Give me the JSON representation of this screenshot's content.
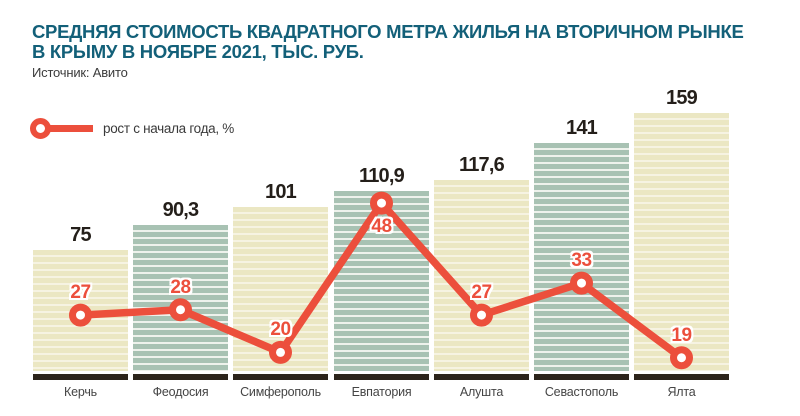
{
  "header": {
    "title_line1": "СРЕДНЯЯ СТОИМОСТЬ КВАДРАТНОГО МЕТРА ЖИЛЬЯ НА ВТОРИЧНОМ РЫНКЕ",
    "title_line2": "В КРЫМУ В НОЯБРЕ 2021, ТЫС. РУБ.",
    "source": "Источник: Авито"
  },
  "legend": {
    "label": "рост с начала года, %"
  },
  "colors": {
    "title": "#136079",
    "red": "#ec4f3c",
    "bar_cream": "#ebe7c3",
    "bar_cream_stripe": "#f6f3e2",
    "bar_green": "#a8c2b3",
    "bar_green_stripe": "#eef2ec",
    "axis": "#2c241b",
    "value_label": "#241f1a",
    "category_label": "#454545"
  },
  "chart_data": {
    "type": "bar",
    "title": "Средняя стоимость квадратного метра жилья на вторичном рынке в Крыму в ноябре 2021, тыс. руб.",
    "source": "Авито",
    "categories": [
      "Керчь",
      "Феодосия",
      "Симферополь",
      "Евпатория",
      "Алушта",
      "Севастополь",
      "Ялта"
    ],
    "series": [
      {
        "name": "Средняя стоимость, тыс. руб.",
        "type": "bar",
        "values": [
          75,
          90.3,
          101,
          110.9,
          117.6,
          141,
          159
        ],
        "labels": [
          "75",
          "90,3",
          "101",
          "110,9",
          "117,6",
          "141",
          "159"
        ],
        "bar_color_pattern": [
          "cream",
          "green",
          "cream",
          "green",
          "cream",
          "green",
          "cream"
        ]
      },
      {
        "name": "рост с начала года, %",
        "type": "line",
        "values": [
          27,
          28,
          20,
          48,
          27,
          33,
          19
        ],
        "labels": [
          "27",
          "28",
          "20",
          "48",
          "27",
          "33",
          "19"
        ],
        "label_positions": [
          "above",
          "above",
          "above",
          "below",
          "above",
          "above",
          "above"
        ]
      }
    ],
    "ylabel": "тыс. руб.",
    "y2label": "%",
    "grid": false,
    "legend_position": "top-left"
  }
}
